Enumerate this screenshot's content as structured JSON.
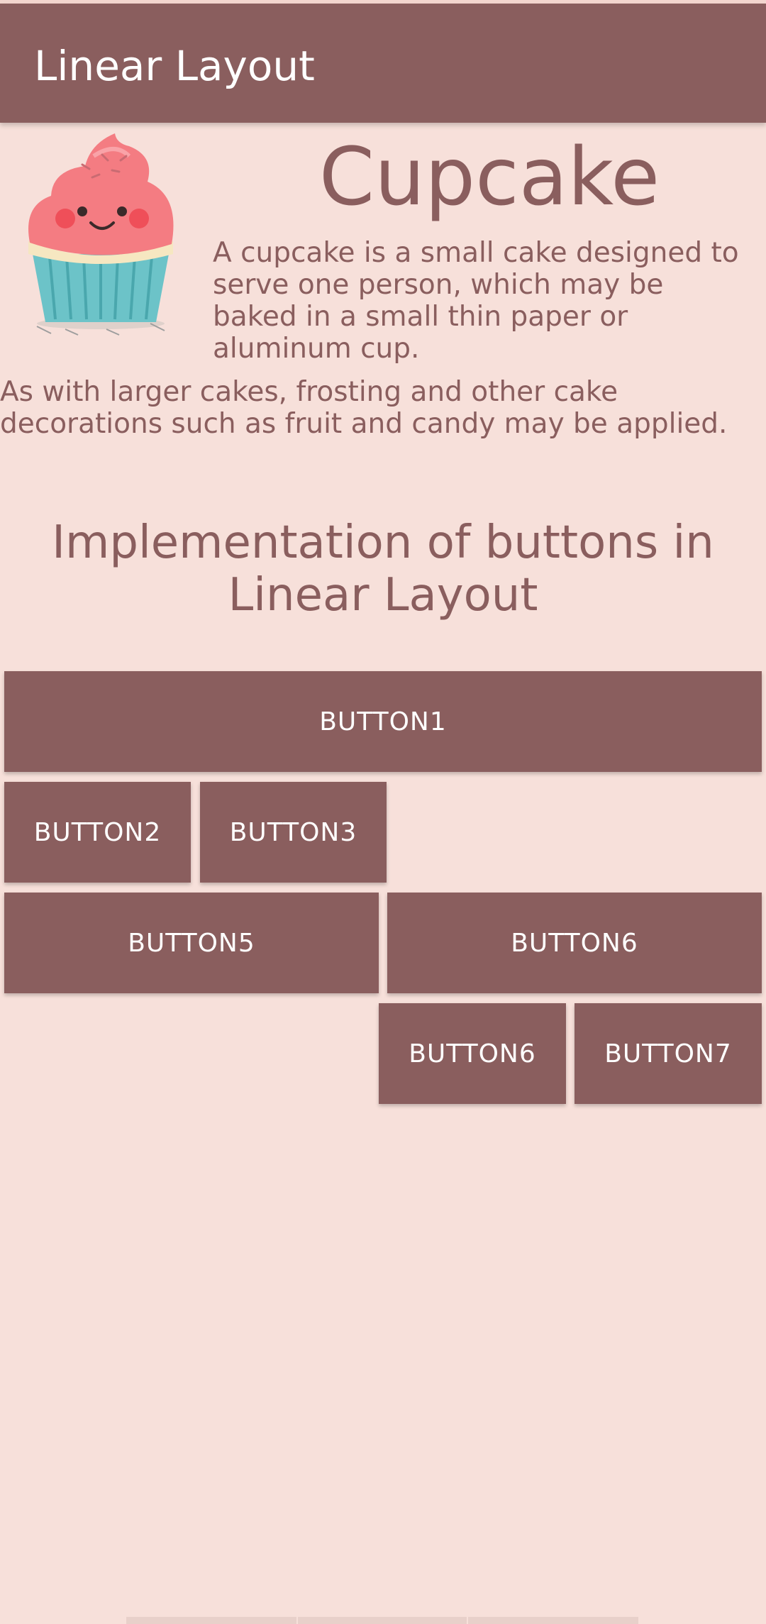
{
  "app_bar": {
    "title": "Linear Layout"
  },
  "content": {
    "image": {
      "icon": "cupcake-illustration"
    },
    "heading": "Cupcake",
    "paragraph1": "A cupcake is a small cake designed to serve one person, which may be baked in a small thin paper or aluminum cup.",
    "paragraph2": "As with larger cakes, frosting and other cake decorations such as fruit and candy may be applied.",
    "section_title": "Implementation of buttons in Linear Layout"
  },
  "buttons": {
    "button1": "BUTTON1",
    "button2": "BUTTON2",
    "button3": "BUTTON3",
    "button5": "BUTTON5",
    "button6": "BUTTON6",
    "button6b": "BUTTON6",
    "button7": "BUTTON7"
  },
  "colors": {
    "background": "#f7e0da",
    "primary": "#8a5e5e",
    "button_text": "#ffffff",
    "frosting": "#f47c82",
    "wrapper": "#6cc3c8"
  }
}
